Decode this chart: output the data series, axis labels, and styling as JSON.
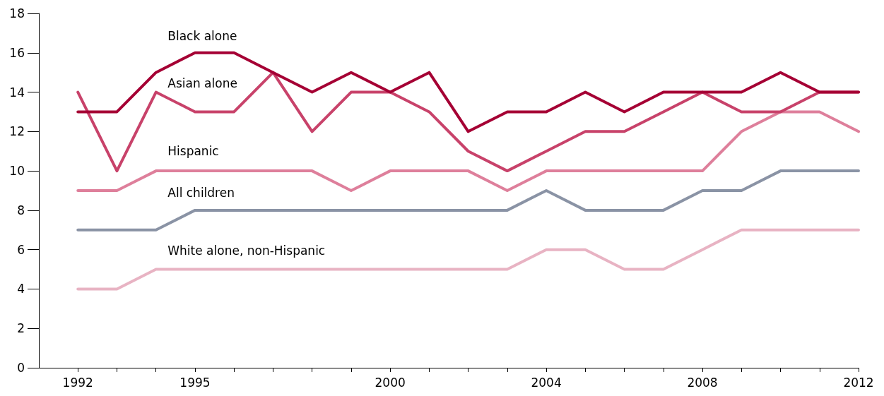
{
  "chart_data": {
    "type": "line",
    "x": [
      1992,
      1993,
      1994,
      1995,
      1996,
      1997,
      1998,
      1999,
      2000,
      2001,
      2002,
      2003,
      2004,
      2005,
      2006,
      2007,
      2008,
      2009,
      2010,
      2011,
      2012
    ],
    "series": [
      {
        "name": "Black alone",
        "color": "#a50034",
        "values": [
          13,
          13,
          15,
          16,
          16,
          15,
          14,
          15,
          14,
          15,
          12,
          13,
          13,
          14,
          13,
          14,
          14,
          14,
          15,
          14,
          14
        ]
      },
      {
        "name": "Asian alone",
        "color": "#c8426a",
        "values": [
          14,
          10,
          14,
          13,
          13,
          15,
          12,
          14,
          14,
          13,
          11,
          10,
          11,
          12,
          12,
          13,
          14,
          13,
          13,
          14,
          14
        ]
      },
      {
        "name": "Hispanic",
        "color": "#de7f9b",
        "values": [
          9,
          9,
          10,
          10,
          10,
          10,
          10,
          9,
          10,
          10,
          10,
          9,
          10,
          10,
          10,
          10,
          10,
          12,
          13,
          13,
          12
        ]
      },
      {
        "name": "All children",
        "color": "#8a93a5",
        "values": [
          7,
          7,
          7,
          8,
          8,
          8,
          8,
          8,
          8,
          8,
          8,
          8,
          9,
          8,
          8,
          8,
          9,
          9,
          10,
          10,
          10
        ]
      },
      {
        "name": "White alone, non-Hispanic",
        "color": "#e8b3c3",
        "values": [
          4,
          4,
          5,
          5,
          5,
          5,
          5,
          5,
          5,
          5,
          5,
          5,
          6,
          6,
          5,
          5,
          6,
          7,
          7,
          7,
          7
        ]
      }
    ],
    "xlim": [
      1991,
      2012
    ],
    "xticks": [
      1992,
      {
        "value": 1993,
        "label": null
      },
      {
        "value": 1994,
        "label": null
      },
      1995,
      {
        "value": 1996,
        "label": null
      },
      {
        "value": 1997,
        "label": null
      },
      {
        "value": 1998,
        "label": null
      },
      {
        "value": 1999,
        "label": null
      },
      2000,
      {
        "value": 2001,
        "label": null
      },
      {
        "value": 2002,
        "label": null
      },
      {
        "value": 2003,
        "label": null
      },
      2004,
      {
        "value": 2005,
        "label": null
      },
      {
        "value": 2006,
        "label": null
      },
      {
        "value": 2007,
        "label": null
      },
      2008,
      {
        "value": 2009,
        "label": null
      },
      {
        "value": 2010,
        "label": null
      },
      {
        "value": 2011,
        "label": null
      },
      2012
    ],
    "ylim": [
      0,
      18
    ],
    "yticks": [
      0,
      2,
      4,
      6,
      8,
      10,
      12,
      14,
      16,
      18
    ],
    "grid": false,
    "legend": false,
    "marker": "none",
    "line_style": "solid"
  }
}
